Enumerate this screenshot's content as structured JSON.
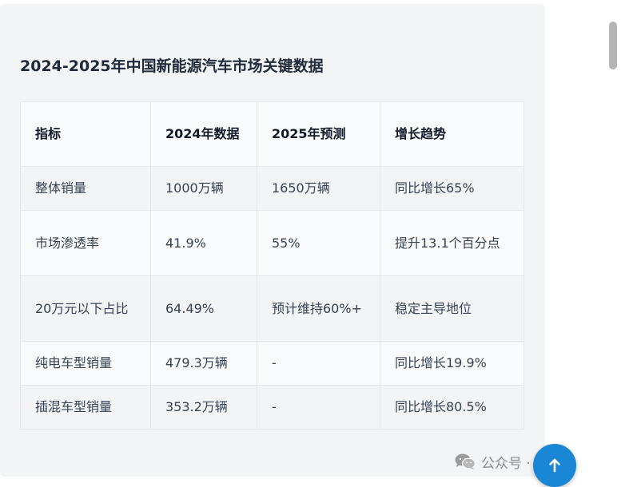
{
  "card": {
    "title": "2024-2025年中国新能源汽车市场关键数据"
  },
  "table": {
    "headers": [
      "指标",
      "2024年数据",
      "2025年预测",
      "增长趋势"
    ],
    "rows": [
      [
        "整体销量",
        "1000万辆",
        "1650万辆",
        "同比增长65%"
      ],
      [
        "市场渗透率",
        "41.9%",
        "55%",
        "提升13.1个百分点"
      ],
      [
        "20万元以下占比",
        "64.49%",
        "预计维持60%+",
        "稳定主导地位"
      ],
      [
        "纯电车型销量",
        "479.3万辆",
        "-",
        "同比增长19.9%"
      ],
      [
        "插混车型销量",
        "353.2万辆",
        "-",
        "同比增长80.5%"
      ]
    ]
  },
  "watermark": {
    "text": "公众号 · 小陈工",
    "icon": "wechat-icon"
  },
  "controls": {
    "back_to_top_icon": "arrow-up-icon",
    "back_to_top_color": "#1a86d6"
  }
}
